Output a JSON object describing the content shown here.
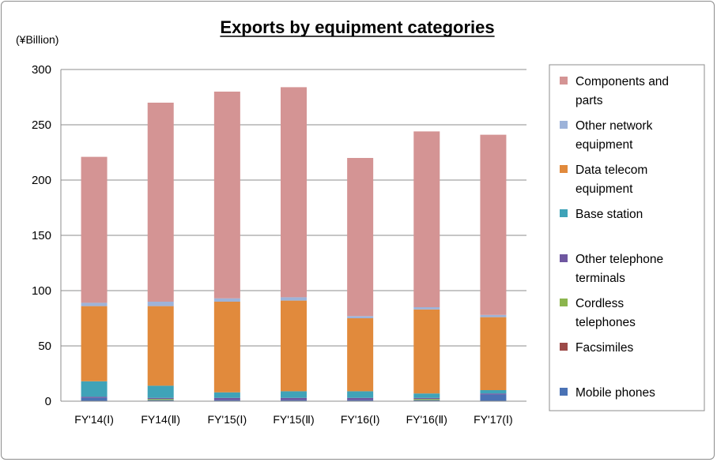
{
  "chart_data": {
    "type": "bar",
    "stacked": true,
    "title": "Exports by equipment categories",
    "ylabel": "(¥Billion)",
    "ylim": [
      0,
      300
    ],
    "yticks": [
      0,
      50,
      100,
      150,
      200,
      250,
      300
    ],
    "grid": true,
    "legend_position": "right",
    "categories": [
      "FY'14(Ⅰ)",
      "FY14(Ⅱ)",
      "FY'15(Ⅰ)",
      "FY'15(Ⅱ)",
      "FY'16(Ⅰ)",
      "FY'16(Ⅱ)",
      "FY'17(Ⅰ)"
    ],
    "series": [
      {
        "name": "Mobile phones",
        "color": "#4a72b5",
        "values": [
          3,
          1,
          1,
          1,
          1,
          1,
          6
        ]
      },
      {
        "name": "Facsimiles",
        "color": "#9c4a48",
        "values": [
          0,
          0,
          0,
          0,
          0,
          0,
          0
        ]
      },
      {
        "name": "Cordless telephones",
        "color": "#8cb54e",
        "values": [
          0,
          1,
          0,
          0,
          0,
          1,
          0
        ]
      },
      {
        "name": "Other telephone terminals",
        "color": "#6f57a0",
        "values": [
          1,
          1,
          2,
          2,
          2,
          1,
          1
        ]
      },
      {
        "name": "Base station",
        "color": "#3fa3b8",
        "values": [
          14,
          11,
          5,
          6,
          6,
          4,
          3
        ]
      },
      {
        "name": "Data telecom equipment",
        "color": "#e18a3c",
        "values": [
          68,
          72,
          82,
          82,
          66,
          76,
          66
        ]
      },
      {
        "name": "Other network equipment",
        "color": "#9db3d9",
        "values": [
          3,
          4,
          3,
          3,
          2,
          2,
          2
        ]
      },
      {
        "name": "Components and parts",
        "color": "#d49494",
        "values": [
          132,
          180,
          187,
          190,
          143,
          159,
          163
        ]
      }
    ],
    "legend": [
      {
        "series": "Components and parts",
        "lines": [
          "Components and",
          "parts"
        ]
      },
      {
        "series": "Other network equipment",
        "lines": [
          "Other network",
          "equipment"
        ]
      },
      {
        "series": "Data telecom equipment",
        "lines": [
          "Data telecom",
          "equipment"
        ]
      },
      {
        "series": "Base station",
        "lines": [
          "Base station"
        ]
      },
      {
        "series": "Other telephone terminals",
        "lines": [
          "Other telephone",
          "terminals"
        ]
      },
      {
        "series": "Cordless telephones",
        "lines": [
          "Cordless",
          "telephones"
        ]
      },
      {
        "series": "Facsimiles",
        "lines": [
          "Facsimiles"
        ]
      },
      {
        "series": "Mobile phones",
        "lines": [
          "Mobile phones"
        ]
      }
    ]
  }
}
